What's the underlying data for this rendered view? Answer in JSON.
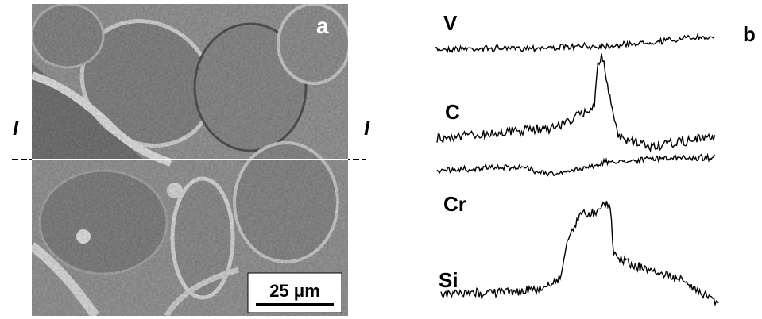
{
  "panel_a": {
    "label": "a",
    "line_labels": [
      "I",
      "I"
    ],
    "scale_bar": "25 μm"
  },
  "panel_b": {
    "label": "b",
    "traces": [
      {
        "label": "V"
      },
      {
        "label": "C"
      },
      {
        "label": "Cr"
      },
      {
        "label": "Si"
      }
    ]
  }
}
